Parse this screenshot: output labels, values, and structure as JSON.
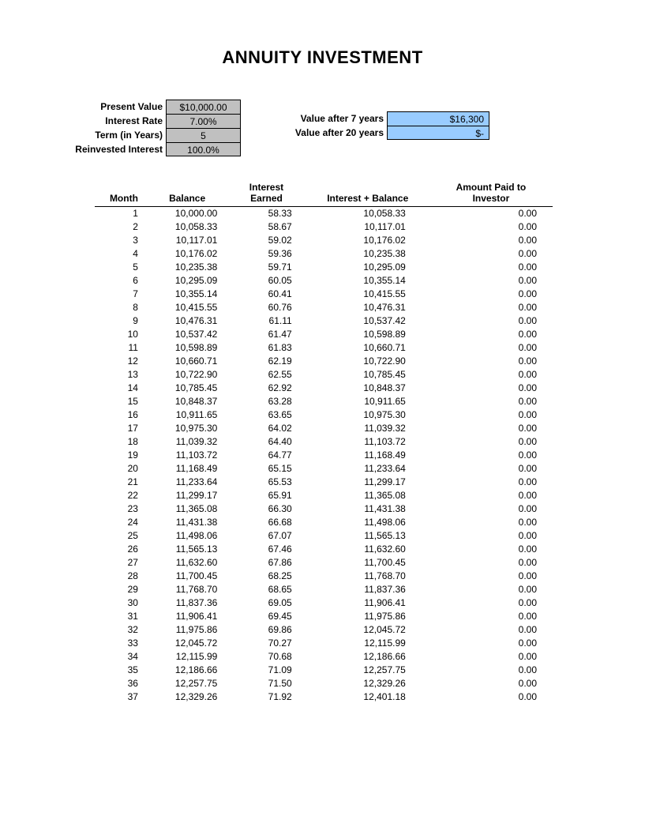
{
  "title": "ANNUITY INVESTMENT",
  "colors": {
    "grey_cell": "#c0c0c0",
    "blue_cell": "#99ccff",
    "border": "#000000",
    "background": "#ffffff",
    "text": "#000000"
  },
  "typography": {
    "title_fontsize": 22,
    "title_weight": "bold",
    "body_fontsize": 12,
    "label_weight": "bold"
  },
  "params_left": [
    {
      "label": "Present Value",
      "value": "$10,000.00"
    },
    {
      "label": "Interest Rate",
      "value": "7.00%"
    },
    {
      "label": "Term (in Years)",
      "value": "5"
    },
    {
      "label": "Reinvested Interest",
      "value": "100.0%"
    }
  ],
  "params_right": [
    {
      "label": "Value after 7 years",
      "value": "$16,300"
    },
    {
      "label": "Value after 20 years",
      "value": "$-"
    }
  ],
  "table": {
    "headers": {
      "month": "Month",
      "balance": "Balance",
      "interest": "Interest\nEarned",
      "intbal": "Interest + Balance",
      "paid": "Amount Paid to\nInvestor"
    },
    "rows": [
      {
        "month": "1",
        "balance": "10,000.00",
        "interest": "58.33",
        "intbal": "10,058.33",
        "paid": "0.00"
      },
      {
        "month": "2",
        "balance": "10,058.33",
        "interest": "58.67",
        "intbal": "10,117.01",
        "paid": "0.00"
      },
      {
        "month": "3",
        "balance": "10,117.01",
        "interest": "59.02",
        "intbal": "10,176.02",
        "paid": "0.00"
      },
      {
        "month": "4",
        "balance": "10,176.02",
        "interest": "59.36",
        "intbal": "10,235.38",
        "paid": "0.00"
      },
      {
        "month": "5",
        "balance": "10,235.38",
        "interest": "59.71",
        "intbal": "10,295.09",
        "paid": "0.00"
      },
      {
        "month": "6",
        "balance": "10,295.09",
        "interest": "60.05",
        "intbal": "10,355.14",
        "paid": "0.00"
      },
      {
        "month": "7",
        "balance": "10,355.14",
        "interest": "60.41",
        "intbal": "10,415.55",
        "paid": "0.00"
      },
      {
        "month": "8",
        "balance": "10,415.55",
        "interest": "60.76",
        "intbal": "10,476.31",
        "paid": "0.00"
      },
      {
        "month": "9",
        "balance": "10,476.31",
        "interest": "61.11",
        "intbal": "10,537.42",
        "paid": "0.00"
      },
      {
        "month": "10",
        "balance": "10,537.42",
        "interest": "61.47",
        "intbal": "10,598.89",
        "paid": "0.00"
      },
      {
        "month": "11",
        "balance": "10,598.89",
        "interest": "61.83",
        "intbal": "10,660.71",
        "paid": "0.00"
      },
      {
        "month": "12",
        "balance": "10,660.71",
        "interest": "62.19",
        "intbal": "10,722.90",
        "paid": "0.00"
      },
      {
        "month": "13",
        "balance": "10,722.90",
        "interest": "62.55",
        "intbal": "10,785.45",
        "paid": "0.00"
      },
      {
        "month": "14",
        "balance": "10,785.45",
        "interest": "62.92",
        "intbal": "10,848.37",
        "paid": "0.00"
      },
      {
        "month": "15",
        "balance": "10,848.37",
        "interest": "63.28",
        "intbal": "10,911.65",
        "paid": "0.00"
      },
      {
        "month": "16",
        "balance": "10,911.65",
        "interest": "63.65",
        "intbal": "10,975.30",
        "paid": "0.00"
      },
      {
        "month": "17",
        "balance": "10,975.30",
        "interest": "64.02",
        "intbal": "11,039.32",
        "paid": "0.00"
      },
      {
        "month": "18",
        "balance": "11,039.32",
        "interest": "64.40",
        "intbal": "11,103.72",
        "paid": "0.00"
      },
      {
        "month": "19",
        "balance": "11,103.72",
        "interest": "64.77",
        "intbal": "11,168.49",
        "paid": "0.00"
      },
      {
        "month": "20",
        "balance": "11,168.49",
        "interest": "65.15",
        "intbal": "11,233.64",
        "paid": "0.00"
      },
      {
        "month": "21",
        "balance": "11,233.64",
        "interest": "65.53",
        "intbal": "11,299.17",
        "paid": "0.00"
      },
      {
        "month": "22",
        "balance": "11,299.17",
        "interest": "65.91",
        "intbal": "11,365.08",
        "paid": "0.00"
      },
      {
        "month": "23",
        "balance": "11,365.08",
        "interest": "66.30",
        "intbal": "11,431.38",
        "paid": "0.00"
      },
      {
        "month": "24",
        "balance": "11,431.38",
        "interest": "66.68",
        "intbal": "11,498.06",
        "paid": "0.00"
      },
      {
        "month": "25",
        "balance": "11,498.06",
        "interest": "67.07",
        "intbal": "11,565.13",
        "paid": "0.00"
      },
      {
        "month": "26",
        "balance": "11,565.13",
        "interest": "67.46",
        "intbal": "11,632.60",
        "paid": "0.00"
      },
      {
        "month": "27",
        "balance": "11,632.60",
        "interest": "67.86",
        "intbal": "11,700.45",
        "paid": "0.00"
      },
      {
        "month": "28",
        "balance": "11,700.45",
        "interest": "68.25",
        "intbal": "11,768.70",
        "paid": "0.00"
      },
      {
        "month": "29",
        "balance": "11,768.70",
        "interest": "68.65",
        "intbal": "11,837.36",
        "paid": "0.00"
      },
      {
        "month": "30",
        "balance": "11,837.36",
        "interest": "69.05",
        "intbal": "11,906.41",
        "paid": "0.00"
      },
      {
        "month": "31",
        "balance": "11,906.41",
        "interest": "69.45",
        "intbal": "11,975.86",
        "paid": "0.00"
      },
      {
        "month": "32",
        "balance": "11,975.86",
        "interest": "69.86",
        "intbal": "12,045.72",
        "paid": "0.00"
      },
      {
        "month": "33",
        "balance": "12,045.72",
        "interest": "70.27",
        "intbal": "12,115.99",
        "paid": "0.00"
      },
      {
        "month": "34",
        "balance": "12,115.99",
        "interest": "70.68",
        "intbal": "12,186.66",
        "paid": "0.00"
      },
      {
        "month": "35",
        "balance": "12,186.66",
        "interest": "71.09",
        "intbal": "12,257.75",
        "paid": "0.00"
      },
      {
        "month": "36",
        "balance": "12,257.75",
        "interest": "71.50",
        "intbal": "12,329.26",
        "paid": "0.00"
      },
      {
        "month": "37",
        "balance": "12,329.26",
        "interest": "71.92",
        "intbal": "12,401.18",
        "paid": "0.00"
      }
    ]
  }
}
